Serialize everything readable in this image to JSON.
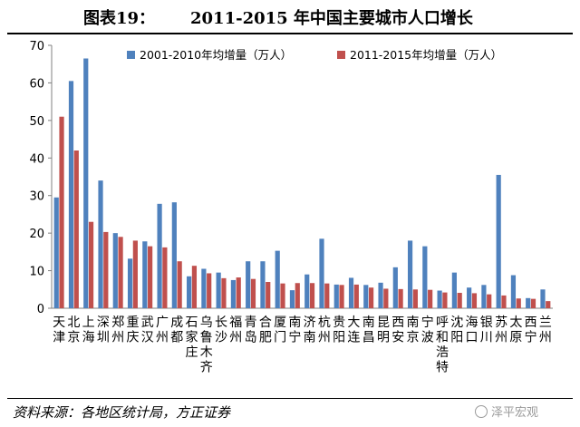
{
  "header": {
    "label": "图表19：",
    "title": "2011-2015 年中国主要城市人口增长"
  },
  "footer": {
    "source": "资料来源：各地区统计局，方正证券",
    "watermark": "泽平宏观"
  },
  "chart_data": {
    "type": "bar",
    "categories": [
      "天津",
      "北京",
      "上海",
      "深圳",
      "郑州",
      "重庆",
      "武汉",
      "广州",
      "成都",
      "石家庄",
      "乌鲁木齐",
      "长沙",
      "福州",
      "青岛",
      "合肥",
      "厦门",
      "南宁",
      "济南",
      "杭州",
      "贵阳",
      "大连",
      "南昌",
      "昆明",
      "西安",
      "南京",
      "宁波",
      "呼和浩特",
      "沈阳",
      "海口",
      "银川",
      "苏州",
      "太原",
      "西宁",
      "兰州"
    ],
    "series": [
      {
        "name": "2001-2010年均增量（万人）",
        "color": "#4f81bd",
        "values": [
          29.5,
          60.5,
          66.5,
          34,
          20,
          13.2,
          17.8,
          27.8,
          28.2,
          8.5,
          10.5,
          9.5,
          7.5,
          12.5,
          12.5,
          15.3,
          4.8,
          9,
          18.5,
          6.3,
          8.1,
          6.2,
          6.8,
          10.9,
          18,
          16.5,
          4.7,
          9.5,
          5.5,
          6.2,
          35.5,
          8.8,
          2.7,
          5
        ]
      },
      {
        "name": "2011-2015年均增量（万人）",
        "color": "#c0504d",
        "values": [
          51,
          42,
          23,
          20.3,
          19,
          18,
          16.5,
          16.2,
          12.5,
          11.3,
          9.3,
          8,
          8.2,
          7.8,
          7,
          6.6,
          6.7,
          6.7,
          6.6,
          6.2,
          6.3,
          5.5,
          5.2,
          5.1,
          5,
          4.9,
          4.2,
          4.1,
          4,
          3.7,
          3.4,
          2.6,
          2.5,
          1.9
        ]
      }
    ],
    "yticks": [
      0,
      10,
      20,
      30,
      40,
      50,
      60,
      70
    ],
    "ylim": [
      0,
      70
    ],
    "legend_position": "top-right"
  }
}
